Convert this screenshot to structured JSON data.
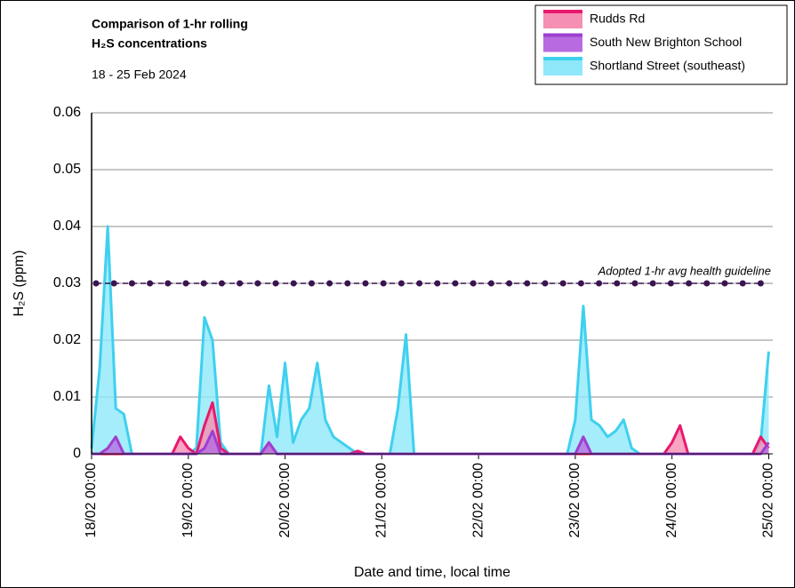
{
  "chart_data": {
    "type": "area",
    "title_lines": [
      "Comparison of 1-hr rolling",
      "H₂S concentrations"
    ],
    "subtitle": "18 - 25 Feb 2024",
    "x_label": "Date and time, local time",
    "y_label": "H₂S (ppm)",
    "x": [
      "18/02 00:00",
      "18/02 02:00",
      "18/02 04:00",
      "18/02 06:00",
      "18/02 08:00",
      "18/02 10:00",
      "18/02 12:00",
      "18/02 14:00",
      "18/02 16:00",
      "18/02 18:00",
      "18/02 20:00",
      "18/02 22:00",
      "19/02 00:00",
      "19/02 02:00",
      "19/02 04:00",
      "19/02 06:00",
      "19/02 08:00",
      "19/02 10:00",
      "19/02 12:00",
      "19/02 14:00",
      "19/02 16:00",
      "19/02 18:00",
      "19/02 20:00",
      "19/02 22:00",
      "20/02 00:00",
      "20/02 02:00",
      "20/02 04:00",
      "20/02 06:00",
      "20/02 08:00",
      "20/02 10:00",
      "20/02 12:00",
      "20/02 14:00",
      "20/02 16:00",
      "20/02 18:00",
      "20/02 20:00",
      "20/02 22:00",
      "21/02 00:00",
      "21/02 02:00",
      "21/02 04:00",
      "21/02 06:00",
      "21/02 08:00",
      "21/02 10:00",
      "21/02 12:00",
      "21/02 14:00",
      "21/02 16:00",
      "21/02 18:00",
      "21/02 20:00",
      "21/02 22:00",
      "22/02 00:00",
      "22/02 02:00",
      "22/02 04:00",
      "22/02 06:00",
      "22/02 08:00",
      "22/02 10:00",
      "22/02 12:00",
      "22/02 14:00",
      "22/02 16:00",
      "22/02 18:00",
      "22/02 20:00",
      "22/02 22:00",
      "23/02 00:00",
      "23/02 02:00",
      "23/02 04:00",
      "23/02 06:00",
      "23/02 08:00",
      "23/02 10:00",
      "23/02 12:00",
      "23/02 14:00",
      "23/02 16:00",
      "23/02 18:00",
      "23/02 20:00",
      "23/02 22:00",
      "24/02 00:00",
      "24/02 02:00",
      "24/02 04:00",
      "24/02 06:00",
      "24/02 08:00",
      "24/02 10:00",
      "24/02 12:00",
      "24/02 14:00",
      "24/02 16:00",
      "24/02 18:00",
      "24/02 20:00",
      "24/02 22:00",
      "25/02 00:00"
    ],
    "series": [
      {
        "name": "Shortland Street (southeast)",
        "color": "#3fd0ef",
        "fill": "#8fe8fa",
        "values": [
          0.001,
          0.015,
          0.04,
          0.008,
          0.007,
          0,
          0,
          0,
          0,
          0,
          0,
          0,
          0,
          0.001,
          0.024,
          0.02,
          0.002,
          0,
          0,
          0,
          0,
          0,
          0.012,
          0.003,
          0.016,
          0.002,
          0.006,
          0.008,
          0.016,
          0.006,
          0.003,
          0.002,
          0.001,
          0,
          0,
          0,
          0,
          0,
          0.008,
          0.021,
          0,
          0,
          0,
          0,
          0,
          0,
          0,
          0,
          0,
          0,
          0,
          0,
          0,
          0,
          0,
          0,
          0,
          0,
          0,
          0,
          0.006,
          0.026,
          0.006,
          0.005,
          0.003,
          0.004,
          0.006,
          0.001,
          0,
          0,
          0,
          0,
          0,
          0,
          0,
          0,
          0,
          0,
          0,
          0,
          0,
          0,
          0,
          0.002,
          0.018
        ]
      },
      {
        "name": "Rudds Rd",
        "color": "#e8196e",
        "fill": "#f58fb3",
        "values": [
          0,
          0,
          0,
          0,
          0,
          0,
          0,
          0,
          0,
          0,
          0,
          0.003,
          0.001,
          0,
          0.005,
          0.009,
          0.001,
          0,
          0,
          0,
          0,
          0,
          0.002,
          0,
          0,
          0,
          0,
          0,
          0,
          0,
          0,
          0,
          0,
          0.0005,
          0,
          0,
          0,
          0,
          0,
          0,
          0,
          0,
          0,
          0,
          0,
          0,
          0,
          0,
          0,
          0,
          0,
          0,
          0,
          0,
          0,
          0,
          0,
          0,
          0,
          0,
          0,
          0,
          0,
          0,
          0,
          0,
          0,
          0,
          0,
          0,
          0,
          0,
          0.002,
          0.005,
          0,
          0,
          0,
          0,
          0,
          0,
          0,
          0,
          0,
          0.003,
          0.001
        ]
      },
      {
        "name": "South New Brighton School",
        "color": "#9d3fd0",
        "fill": "#b86be0",
        "values": [
          0,
          0,
          0.001,
          0.003,
          0,
          0,
          0,
          0,
          0,
          0,
          0,
          0,
          0,
          0,
          0.001,
          0.004,
          0,
          0,
          0,
          0,
          0,
          0,
          0.002,
          0,
          0,
          0,
          0,
          0,
          0,
          0,
          0,
          0,
          0,
          0,
          0,
          0,
          0,
          0,
          0,
          0,
          0,
          0,
          0,
          0,
          0,
          0,
          0,
          0,
          0,
          0,
          0,
          0,
          0,
          0,
          0,
          0,
          0,
          0,
          0,
          0,
          0,
          0.003,
          0,
          0,
          0,
          0,
          0,
          0,
          0,
          0,
          0,
          0,
          0,
          0,
          0,
          0,
          0,
          0,
          0,
          0,
          0,
          0,
          0,
          0,
          0.002
        ]
      }
    ],
    "legend_order": [
      1,
      2,
      0
    ],
    "guideline": {
      "text": "Adopted 1-hr avg health guideline",
      "value": 0.03,
      "color": "#3a1450"
    },
    "xlim": [
      "18/02 00:00",
      "25/02 01:00"
    ],
    "xticks": [
      "18/02 00:00",
      "19/02 00:00",
      "20/02 00:00",
      "21/02 00:00",
      "22/02 00:00",
      "23/02 00:00",
      "24/02 00:00",
      "25/02 00:00"
    ],
    "ylim": [
      0,
      0.06
    ],
    "yticks": [
      0,
      0.01,
      0.02,
      0.03,
      0.04,
      0.05,
      0.06
    ],
    "grid": true,
    "legend_position": "top-right"
  }
}
